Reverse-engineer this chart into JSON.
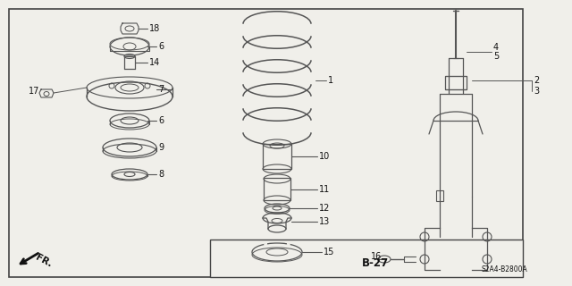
{
  "bg_color": "#f0efea",
  "border_color": "#444444",
  "line_color": "#555555",
  "text_color": "#111111",
  "diagram_code": "B-27",
  "diagram_ref": "S2A4-B2800A",
  "fig_w": 6.4,
  "fig_h": 3.2,
  "dpi": 100,
  "xlim": [
    0,
    640
  ],
  "ylim": [
    0,
    320
  ]
}
